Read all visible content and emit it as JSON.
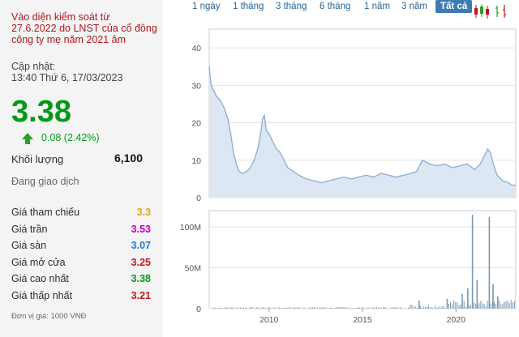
{
  "sidebar": {
    "warning": "Vào diện kiểm soát từ 27.6.2022 do LNST của cổ đông công ty mẹ năm 2021 âm",
    "updated_label": "Cập nhật:",
    "updated_time": "13:40 Thứ 6, 17/03/2023",
    "price": "3.38",
    "change": "0.08 (2.42%)",
    "volume_label": "Khối lượng",
    "volume_value": "6,100",
    "status": "Đang giao dịch",
    "prices": [
      {
        "label": "Giá tham chiếu",
        "value": "3.3",
        "color": "#e6a700"
      },
      {
        "label": "Giá trần",
        "value": "3.53",
        "color": "#c000c0"
      },
      {
        "label": "Giá sàn",
        "value": "3.07",
        "color": "#1c7ad4"
      },
      {
        "label": "Giá mở cửa",
        "value": "3.25",
        "color": "#c0161c"
      },
      {
        "label": "Giá cao nhất",
        "value": "3.38",
        "color": "#009a17"
      },
      {
        "label": "Giá thấp nhất",
        "value": "3.21",
        "color": "#c0161c"
      }
    ],
    "unit_note": "Đơn vị giá: 1000 VNĐ",
    "colors": {
      "up": "#009a17",
      "warning": "#b1171b"
    }
  },
  "toolbar": {
    "ranges": [
      "1 ngày",
      "1 tháng",
      "3 tháng",
      "6 tháng",
      "1 năm",
      "3 năm",
      "Tất cả"
    ],
    "active": "Tất cả",
    "icons": [
      "candlestick-icon",
      "line-chart-icon"
    ]
  },
  "chart_data": [
    {
      "type": "area",
      "y_ticks": [
        "0",
        "10",
        "20",
        "30",
        "40"
      ],
      "ylim": [
        0,
        45
      ],
      "xlim": [
        2006.8,
        2023.2
      ],
      "x": [
        2006.8,
        2006.9,
        2007.0,
        2007.2,
        2007.4,
        2007.6,
        2007.8,
        2007.95,
        2008.1,
        2008.25,
        2008.4,
        2008.6,
        2008.8,
        2009.0,
        2009.2,
        2009.4,
        2009.55,
        2009.65,
        2009.75,
        2009.85,
        2010.0,
        2010.2,
        2010.4,
        2010.6,
        2010.8,
        2011.0,
        2011.3,
        2011.6,
        2012.0,
        2012.4,
        2012.8,
        2013.2,
        2013.6,
        2014.0,
        2014.4,
        2014.8,
        2015.2,
        2015.6,
        2016.0,
        2016.4,
        2016.8,
        2017.2,
        2017.6,
        2017.9,
        2018.2,
        2018.6,
        2019.0,
        2019.4,
        2019.8,
        2020.2,
        2020.6,
        2021.0,
        2021.3,
        2021.5,
        2021.7,
        2021.85,
        2022.0,
        2022.2,
        2022.5,
        2022.8,
        2023.0,
        2023.2
      ],
      "values": [
        35,
        30,
        29,
        27,
        26,
        24,
        21,
        17,
        12,
        9,
        7,
        6.5,
        7,
        8,
        10,
        13,
        17,
        21,
        22,
        18,
        17,
        15,
        13,
        12,
        10,
        8,
        7,
        6,
        5,
        4.5,
        4,
        4.5,
        5,
        5.5,
        5,
        5.5,
        6,
        5.5,
        6.5,
        6,
        5.5,
        6,
        6.5,
        7,
        10,
        9,
        8.5,
        9,
        8,
        8.5,
        9,
        7.5,
        9,
        11,
        13,
        12,
        9,
        6,
        4.5,
        4,
        3.3,
        3.4
      ],
      "fill": "#dce7f3",
      "stroke": "#8fb1d8"
    },
    {
      "type": "bar",
      "y_ticks": [
        "0",
        "50M",
        "100M"
      ],
      "ylim": [
        0,
        120000000
      ],
      "x_ticks": [
        "2010",
        "2015",
        "2020"
      ],
      "xlim": [
        2006.8,
        2023.2
      ],
      "spikes": [
        {
          "x": 2020.85,
          "value": 115000000
        },
        {
          "x": 2021.75,
          "value": 112000000
        },
        {
          "x": 2021.1,
          "value": 35000000
        },
        {
          "x": 2020.6,
          "value": 25000000
        },
        {
          "x": 2021.95,
          "value": 30000000
        },
        {
          "x": 2020.3,
          "value": 18000000
        },
        {
          "x": 2022.2,
          "value": 15000000
        },
        {
          "x": 2019.5,
          "value": 12000000
        },
        {
          "x": 2018.0,
          "value": 10000000
        }
      ],
      "color": "#7797b0"
    }
  ]
}
